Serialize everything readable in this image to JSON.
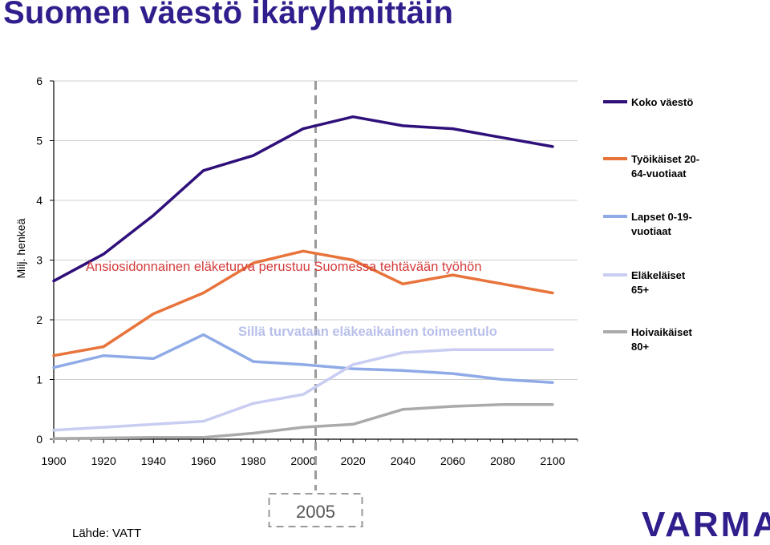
{
  "page": {
    "title": "Suomen väestö ikäryhmittäin",
    "source": "Lähde: VATT",
    "logo": "VARMA"
  },
  "chart_data": {
    "type": "line",
    "ylabel": "Milj. henkeä",
    "xlabel": "",
    "ylim": [
      0,
      6
    ],
    "yticks": [
      0,
      1,
      2,
      3,
      4,
      5,
      6
    ],
    "xlim": [
      1900,
      2110
    ],
    "xticks": [
      1900,
      1920,
      1940,
      1960,
      1980,
      2000,
      2020,
      2040,
      2060,
      2080,
      2100
    ],
    "grid": "horizontal",
    "legend_position": "right",
    "marker_line": {
      "x": 2005,
      "label": "2005"
    },
    "annotations": [
      "Ansiosidonnainen eläketurva perustuu Suomessa tehtävään työhön",
      "Sillä turvataan eläkeaikainen toimeentulo"
    ],
    "x": [
      1900,
      1920,
      1940,
      1960,
      1980,
      2000,
      2020,
      2040,
      2060,
      2080,
      2100
    ],
    "series": [
      {
        "name": "Koko väestö",
        "color": "#2f0f7a",
        "values": [
          2.65,
          3.1,
          3.75,
          4.5,
          4.75,
          5.2,
          5.4,
          5.25,
          5.2,
          5.05,
          4.9
        ]
      },
      {
        "name": "Työikäiset 20-64-vuotiaat",
        "color": "#e8733b",
        "values": [
          1.4,
          1.55,
          2.1,
          2.45,
          2.95,
          3.15,
          3.0,
          2.6,
          2.75,
          2.6,
          2.45
        ]
      },
      {
        "name": "Lapset 0-19-vuotiaat",
        "color": "#8faae6",
        "values": [
          1.2,
          1.4,
          1.35,
          1.75,
          1.3,
          1.25,
          1.18,
          1.15,
          1.1,
          1.0,
          0.95
        ]
      },
      {
        "name": "Eläkeläiset 65+",
        "color": "#c9cdf2",
        "values": [
          0.15,
          0.2,
          0.25,
          0.3,
          0.6,
          0.75,
          1.25,
          1.45,
          1.5,
          1.5,
          1.5
        ]
      },
      {
        "name": "Hoivaikäiset 80+",
        "color": "#aaaaaa",
        "values": [
          0.01,
          0.02,
          0.03,
          0.03,
          0.1,
          0.2,
          0.25,
          0.5,
          0.55,
          0.58,
          0.58
        ]
      }
    ],
    "legend_lines": [
      [
        "Koko väestö"
      ],
      [
        "Työikäiset 20-",
        "64-vuotiaat"
      ],
      [
        "Lapset 0-19-",
        "vuotiaat"
      ],
      [
        "Eläkeläiset",
        "65+"
      ],
      [
        "Hoivaikäiset",
        "80+"
      ]
    ]
  }
}
